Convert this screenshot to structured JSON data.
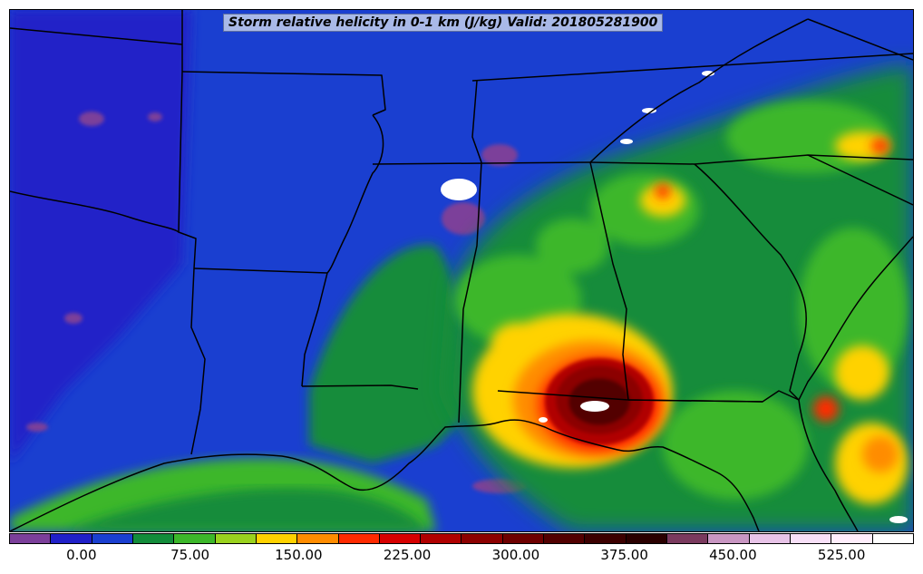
{
  "title": "Storm relative helicity in 0-1 km (J/kg) Valid: 201805281900",
  "colorbar": {
    "colors": [
      "#7b3f9a",
      "#2020c8",
      "#1a3fd0",
      "#128c3a",
      "#3cb72a",
      "#9ad21e",
      "#ffd200",
      "#ff8c00",
      "#ff2a00",
      "#d60000",
      "#b00000",
      "#8c0000",
      "#6e0000",
      "#520000",
      "#3c0000",
      "#2a0000",
      "#7a3a5e",
      "#c896c2",
      "#e8c4e8",
      "#f8e0f8",
      "#ffeefc",
      "#ffffff"
    ],
    "ticks": [
      "0.00",
      "75.00",
      "150.00",
      "225.00",
      "300.00",
      "375.00",
      "450.00",
      "525.00"
    ],
    "tick_positions": [
      2,
      5,
      8,
      11,
      14,
      17,
      20,
      23
    ]
  },
  "colors": {
    "background_field": "#1a3fd0",
    "low_purple": "#7b3f9a",
    "green_field": "#128c3a",
    "state_lines": "#000000"
  }
}
